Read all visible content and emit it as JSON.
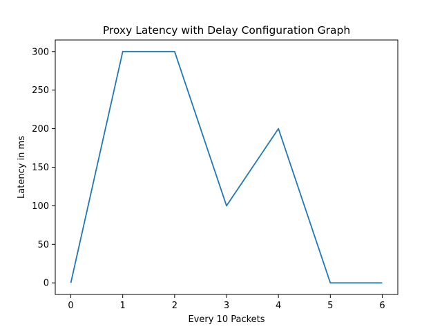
{
  "chart_data": {
    "type": "line",
    "title": "Proxy Latency with Delay Configuration Graph",
    "xlabel": "Every 10 Packets",
    "ylabel": "Latency in ms",
    "x": [
      0,
      1,
      2,
      3,
      4,
      5,
      6
    ],
    "series": [
      {
        "values": [
          0,
          300,
          300,
          100,
          200,
          0,
          0
        ],
        "color": "#1f77b4"
      }
    ],
    "xticks": [
      "0",
      "1",
      "2",
      "3",
      "4",
      "5",
      "6"
    ],
    "yticks": [
      "0",
      "50",
      "100",
      "150",
      "200",
      "250",
      "300"
    ],
    "xlim": [
      -0.3,
      6.3
    ],
    "ylim": [
      -15,
      315
    ],
    "grid": false,
    "legend": "none"
  }
}
